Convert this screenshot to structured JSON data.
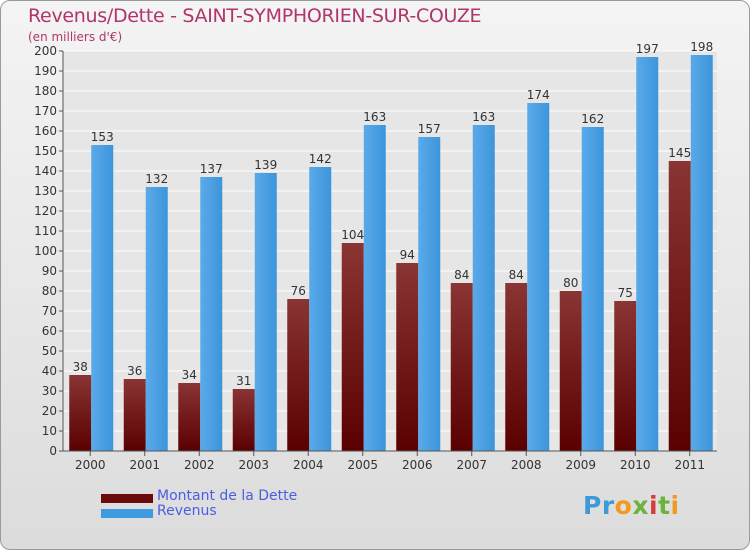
{
  "title": "Revenus/Dette - SAINT-SYMPHORIEN-SUR-COUZE",
  "subtitle": "(en milliers d'€)",
  "logo": {
    "letters": [
      "P",
      "r",
      "o",
      "x",
      "i",
      "t",
      "i"
    ],
    "colors": [
      "#3c9ad6",
      "#3c9ad6",
      "#f29a1f",
      "#6bb33b",
      "#d63b3b",
      "#6bb33b",
      "#f29a1f"
    ]
  },
  "legend": [
    {
      "label": "Montant de la Dette",
      "color": "#6b0a0a"
    },
    {
      "label": "Revenus",
      "color": "#3f9be0"
    }
  ],
  "chart_data": {
    "type": "bar",
    "categories": [
      "2000",
      "2001",
      "2002",
      "2003",
      "2004",
      "2005",
      "2006",
      "2007",
      "2008",
      "2009",
      "2010",
      "2011"
    ],
    "series": [
      {
        "name": "Montant de la Dette",
        "color": "#7a1c1c",
        "values": [
          38,
          36,
          34,
          31,
          76,
          104,
          94,
          84,
          84,
          80,
          75,
          145
        ]
      },
      {
        "name": "Revenus",
        "color": "#3f9be0",
        "values": [
          153,
          132,
          137,
          139,
          142,
          163,
          157,
          163,
          174,
          162,
          197,
          198
        ]
      }
    ],
    "ylim": [
      0,
      200
    ],
    "yticks": [
      0,
      10,
      20,
      30,
      40,
      50,
      60,
      70,
      80,
      90,
      100,
      110,
      120,
      130,
      140,
      150,
      160,
      170,
      180,
      190,
      200
    ],
    "grid": true,
    "legend_position": "bottom-left"
  }
}
